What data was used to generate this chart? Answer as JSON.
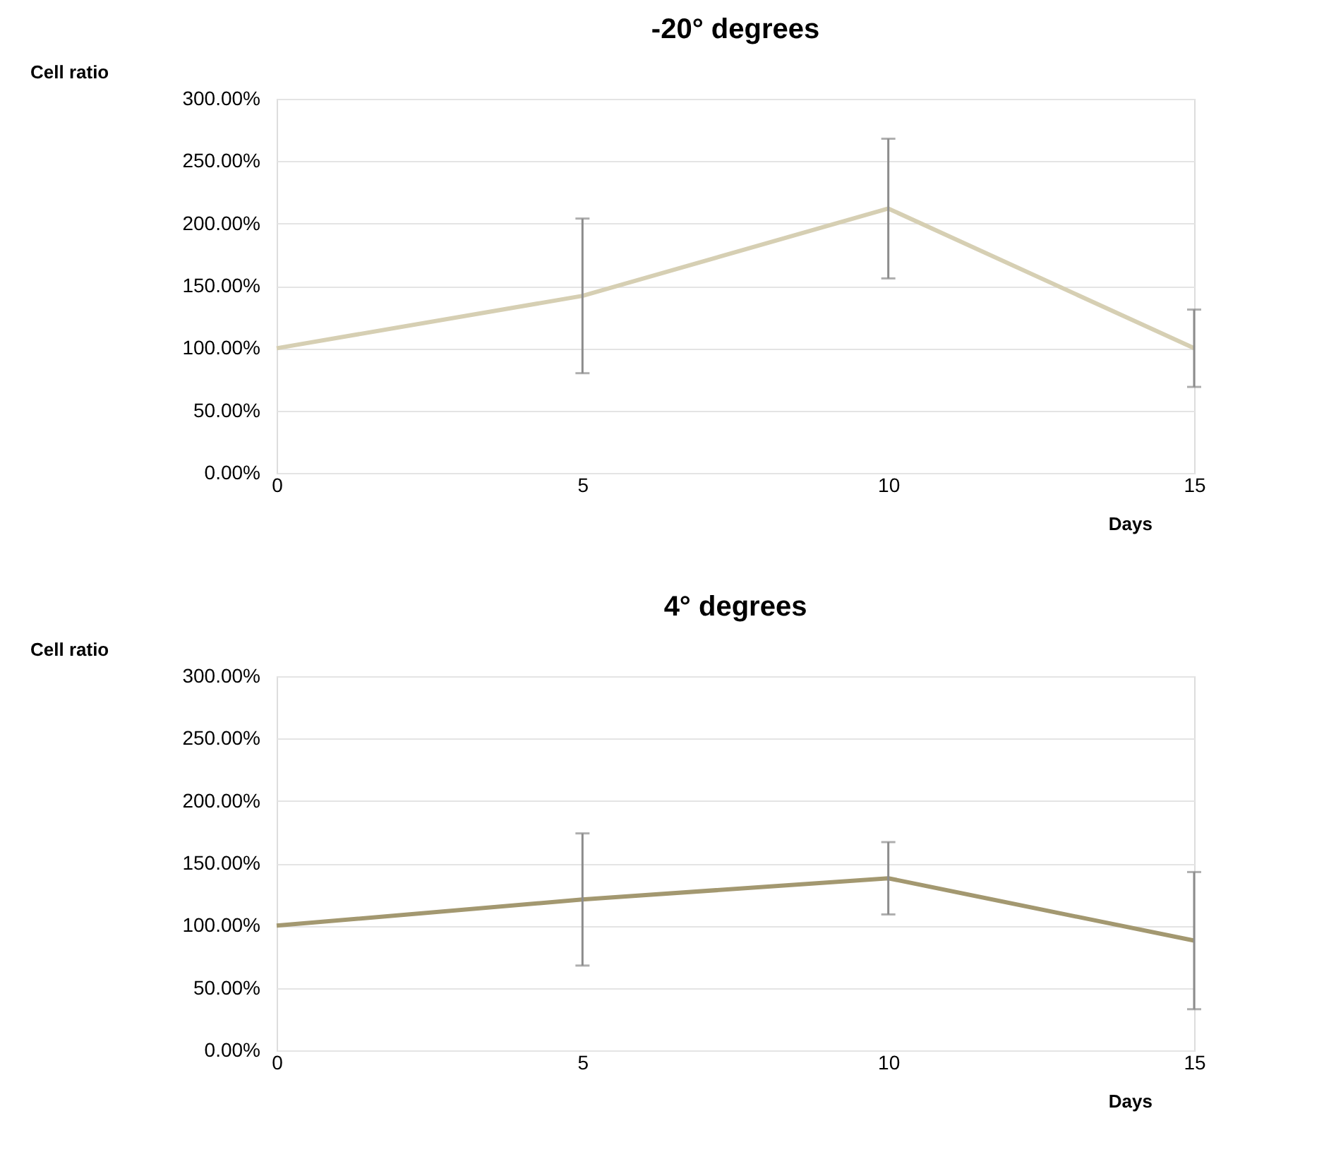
{
  "chart_data": [
    {
      "type": "line",
      "title": "-20° degrees",
      "xlabel": "Days",
      "ylabel": "Cell ratio",
      "x": [
        0,
        5,
        10,
        15
      ],
      "series": [
        {
          "color": "#d6cfb3",
          "values": [
            100,
            142,
            212,
            100
          ],
          "errors": [
            null,
            62,
            56,
            31
          ]
        }
      ],
      "xlim": [
        0,
        15
      ],
      "xticks": [
        0,
        5,
        10,
        15
      ],
      "ylim": [
        0,
        300
      ],
      "yticks": [
        {
          "value": 0,
          "label": "0.00%"
        },
        {
          "value": 50,
          "label": "50.00%"
        },
        {
          "value": 100,
          "label": "100.00%"
        },
        {
          "value": 150,
          "label": "150.00%"
        },
        {
          "value": 200,
          "label": "200.00%"
        },
        {
          "value": 250,
          "label": "250.00%"
        },
        {
          "value": 300,
          "label": "300.00%"
        }
      ],
      "grid": "y",
      "marker": "none",
      "line_style": "solid"
    },
    {
      "type": "line",
      "title": "4° degrees",
      "xlabel": "Days",
      "ylabel": "Cell ratio",
      "x": [
        0,
        5,
        10,
        15
      ],
      "series": [
        {
          "color": "#a39870",
          "values": [
            100,
            121,
            138,
            88
          ],
          "errors": [
            null,
            53,
            29,
            55
          ]
        }
      ],
      "xlim": [
        0,
        15
      ],
      "xticks": [
        0,
        5,
        10,
        15
      ],
      "ylim": [
        0,
        300
      ],
      "yticks": [
        {
          "value": 0,
          "label": "0.00%"
        },
        {
          "value": 50,
          "label": "50.00%"
        },
        {
          "value": 100,
          "label": "100.00%"
        },
        {
          "value": 150,
          "label": "150.00%"
        },
        {
          "value": 200,
          "label": "200.00%"
        },
        {
          "value": 250,
          "label": "250.00%"
        },
        {
          "value": 300,
          "label": "300.00%"
        }
      ],
      "grid": "y",
      "marker": "none",
      "line_style": "solid"
    }
  ]
}
